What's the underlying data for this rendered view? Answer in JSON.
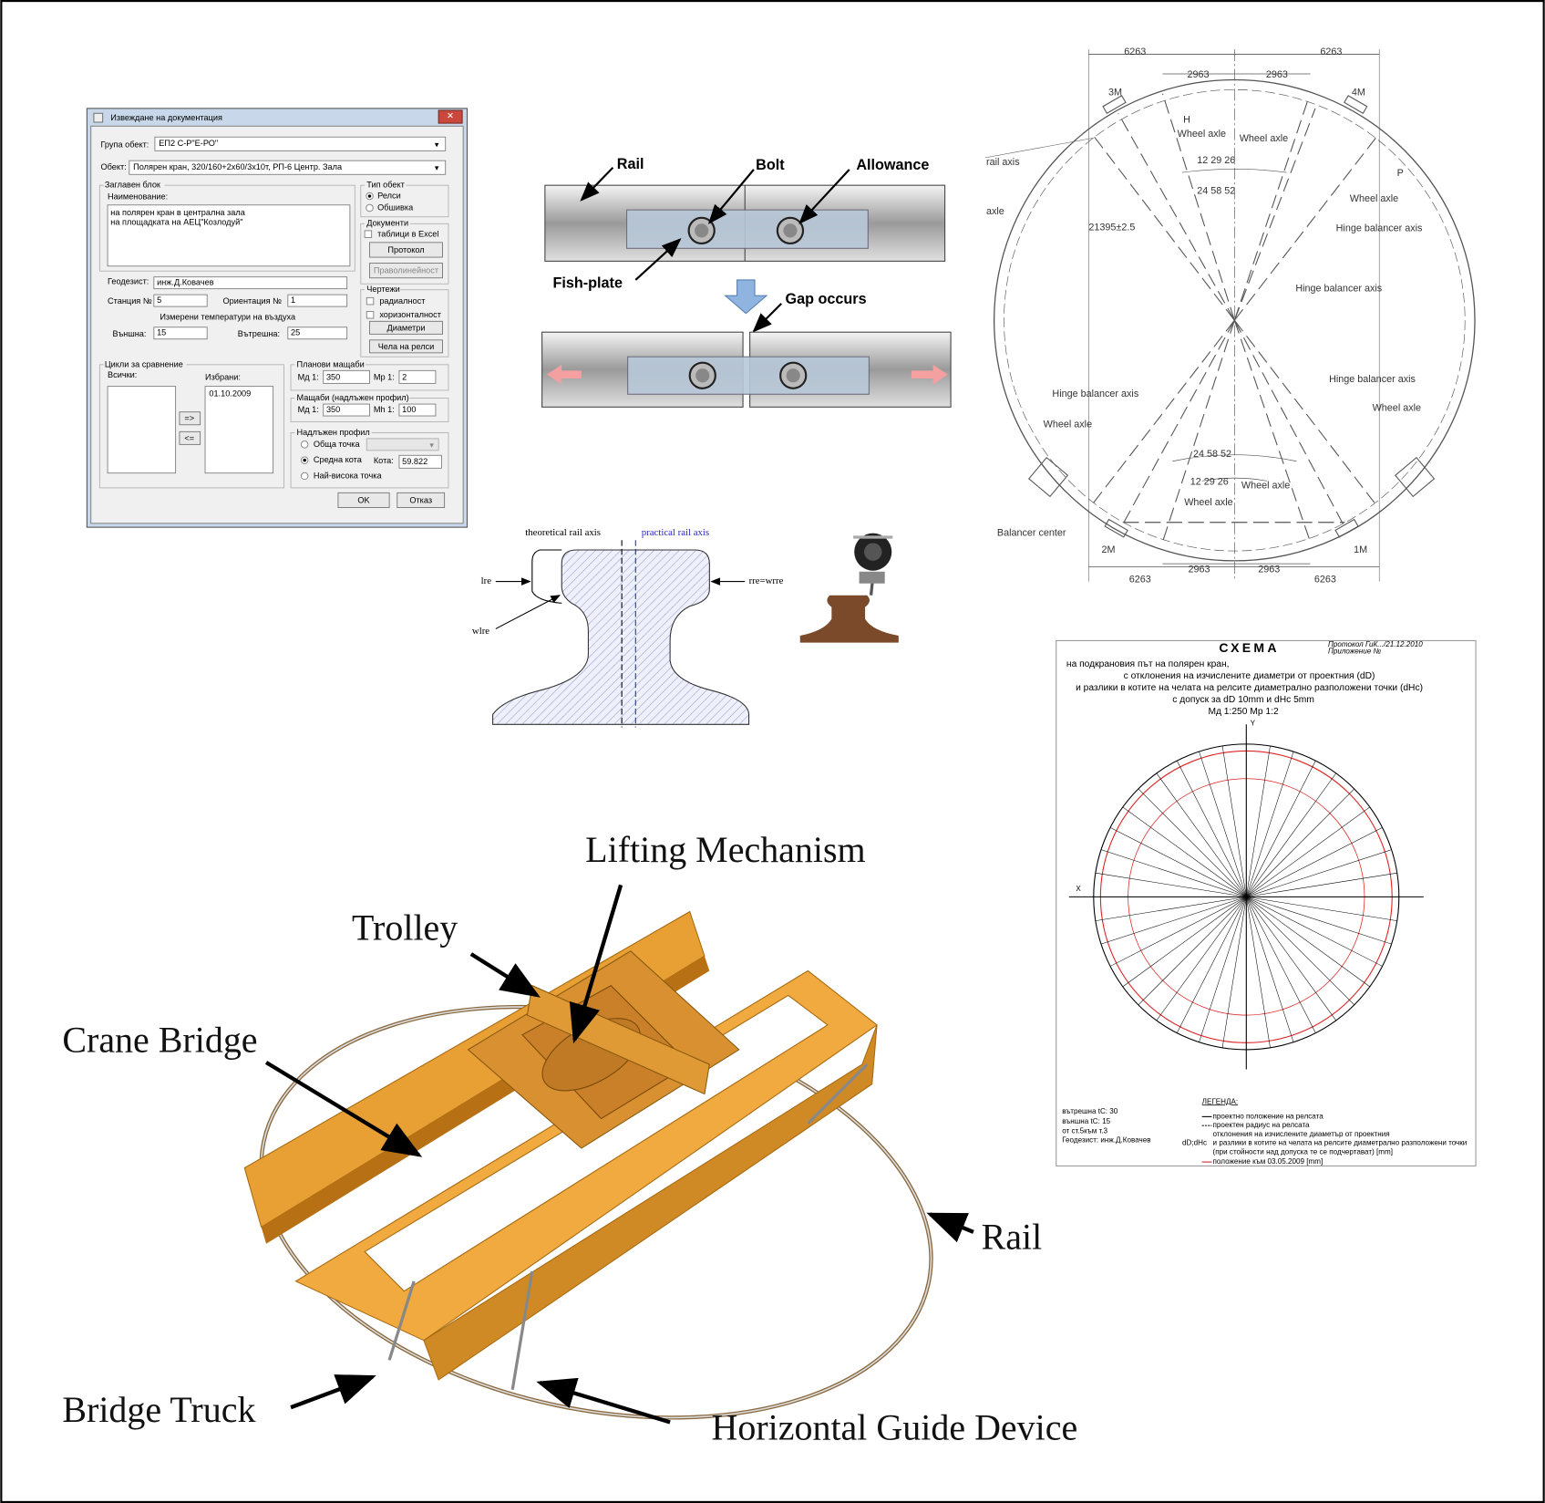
{
  "dialog": {
    "title": "Извеждане на документация",
    "group_label": "Група обект:",
    "group_value": "ЕП2 С-Р\"Е-РО\"",
    "object_label": "Обект:",
    "object_value": "Полярен кран, 320/160+2x60/3x10т, РП-6 Центр. Зала",
    "title_block": "Заглавен блок",
    "name_label": "Наименование:",
    "name_lines": [
      "на полярен кран в централна зала",
      "на площадката на АЕЦ\"Козлодуй\""
    ],
    "surveyor_label": "Геодезист:",
    "surveyor_value": "инж.Д.Ковачев",
    "station_label": "Станция №",
    "station_value": "5",
    "orientation_label": "Ориентация №",
    "orientation_value": "1",
    "temps_label": "Измерени температури на въздуха",
    "outer_label": "Външна:",
    "outer_value": "15",
    "inner_label": "Вътрешна:",
    "inner_value": "25",
    "object_type": "Тип обект",
    "type_options": [
      "Релси",
      "Обшивка"
    ],
    "documents": "Документи",
    "excel": "таблици в Excel",
    "protocol": "Протокол",
    "straightness": "Праволинейност",
    "drawings": "Чертежи",
    "radial": "радиалност",
    "horizontal": "хоризонталност",
    "diameters": "Диаметри",
    "rail_heads": "Чела на релси",
    "cycles": "Цикли за сравнение",
    "all": "Всички:",
    "selected": "Избрани:",
    "selected_items": [
      "01.10.2009"
    ],
    "add": "=>",
    "remove": "<=",
    "plan_scales": "Планови мащаби",
    "md1": "Мд 1:",
    "plan_md": "350",
    "mp1": "Мр 1:",
    "plan_mp": "2",
    "profile_scales": "Мащаби (надлъжен профил)",
    "profile_md": "350",
    "mh1": "Мh 1:",
    "profile_mh": "100",
    "long_profile": "Надлъжен профил",
    "profile_options": [
      "Обща точка",
      "Средна кота",
      "Най-висока точка"
    ],
    "kota_label": "Кота:",
    "kota_value": "59.822",
    "ok": "OK",
    "cancel": "Отказ"
  },
  "rail_joint": {
    "rail": "Rail",
    "bolt": "Bolt",
    "allowance": "Allowance",
    "fish_plate": "Fish-plate",
    "gap": "Gap occurs"
  },
  "rail_profile": {
    "theoretical": "theoretical rail axis",
    "practical": "practical rail axis",
    "lre": "lre",
    "rre": "rre=wrre",
    "wlre": "wlre"
  },
  "crane_ring": {
    "labels": [
      "6263",
      "6263",
      "2963",
      "2963",
      "3M",
      "4M",
      "Wheel axle",
      "Wheel axle",
      "12 29 26",
      "24 58 52",
      "rail axis",
      "axle",
      "21395±2.5",
      "Wheel axle",
      "Hinge balancer axis",
      "Hinge balancer axis",
      "Hinge balancer axis",
      "Hinge balancer axis",
      "Wheel axle",
      "Wheel axle",
      "24 58 52",
      "12 29 26",
      "Wheel axle",
      "Wheel axle",
      "Balancer center",
      "2M",
      "1M",
      "6263",
      "2963",
      "2963",
      "6263",
      "H",
      "P"
    ]
  },
  "schema": {
    "title": "СХЕМА",
    "protocol": "Протокол ГиК.../21.12.2010",
    "appendix": "Приложение №",
    "lines": [
      "на подкрановия път на полярен кран,",
      "с отклонения на изчислените диаметри от проектния (dD)",
      "и разлики в котите на челата на релсите диаметрално разположени точки (dHc)",
      "с допуск за dD 10mm и dHc 5mm",
      "Мд 1:250 Мр 1:2"
    ],
    "y_axis": "Y",
    "x_axis": "X",
    "notes": [
      "вътрешна tC: 30",
      "външна tC: 15",
      "от ст.5към т.3",
      "Геодезист: инж.Д.Ковачев"
    ],
    "legend_title": "ЛЕГЕНДА:",
    "legend_key": "dD;dHc",
    "legend": [
      "проектно положение на релсата",
      "проектен радиус на релсата",
      "отклонения на изчислените диаметър от проектния",
      "и разлики в котите на челата на релсите диаметрално разположени точки",
      "(при стойности над допуска те се подчертават) [mm]",
      "положение към 03.05.2009 [mm]"
    ]
  },
  "crane_3d": {
    "lifting": "Lifting Mechanism",
    "trolley": "Trolley",
    "bridge": "Crane Bridge",
    "rail": "Rail",
    "truck": "Bridge Truck",
    "guide": "Horizontal Guide Device"
  }
}
